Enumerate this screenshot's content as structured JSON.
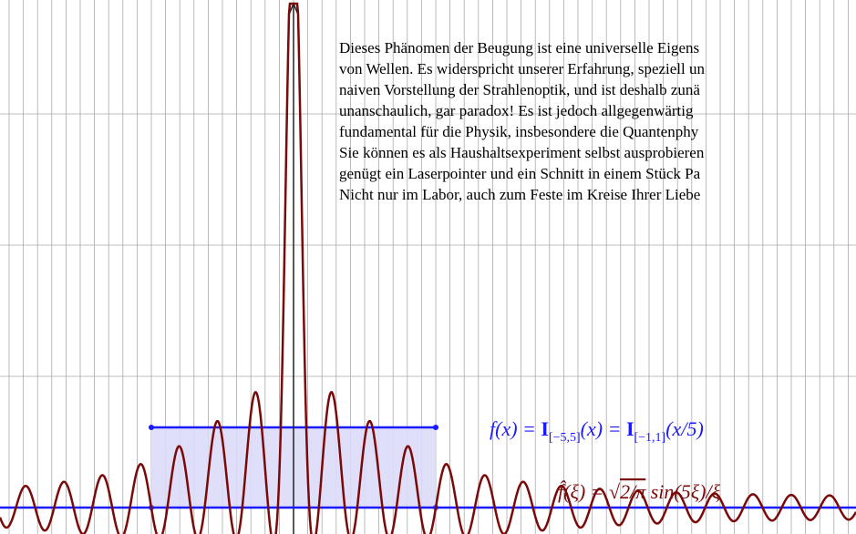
{
  "paragraph": [
    "Dieses Phänomen der Beugung ist eine universelle Eigens",
    "von Wellen. Es widerspricht unserer Erfahrung, speziell un",
    "naiven Vorstellung der Strahlenoptik, und ist deshalb zunä",
    "unanschaulich, gar paradox! Es ist jedoch allgegenwärtig",
    "fundamental für die Physik, insbesondere die Quantenphy",
    "Sie können es als Haushaltsexperiment selbst ausprobieren",
    "genügt ein Laserpointer und ein Schnitt in einem Stück Pa",
    "Nicht nur im Labor, auch zum Feste im Kreise Ihrer Liebe"
  ],
  "formula_f": {
    "lhs": "f(x) = ",
    "indicator": "I",
    "sub1": "[−5,5]",
    "mid": "(x) = ",
    "sub2": "[−1,1]",
    "end": "(x/5)"
  },
  "formula_fhat": {
    "lhs": "f̂(ξ) = ",
    "root": "√",
    "radicand": "2/π",
    "rest": " sin(5ξ)/ξ"
  }
}
